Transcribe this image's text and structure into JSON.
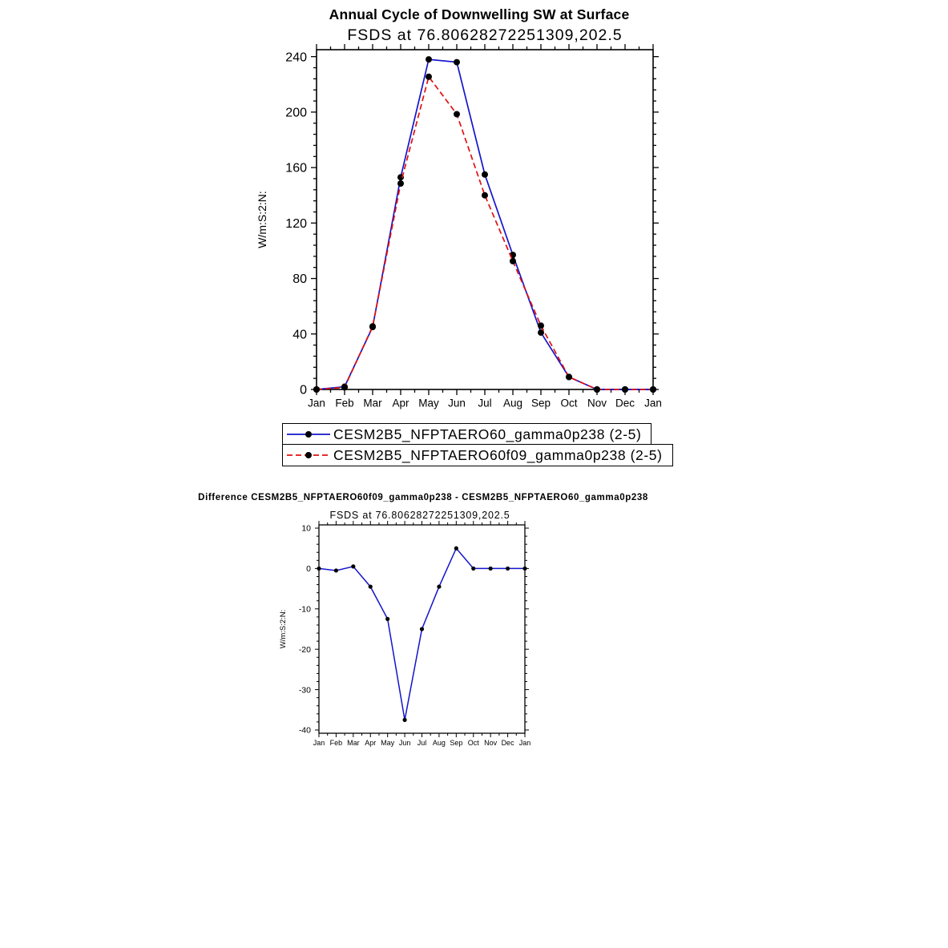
{
  "chart_data": [
    {
      "type": "line",
      "title": "Annual Cycle of Downwelling SW at Surface",
      "subtitle": "FSDS at 76.80628272251309,202.5",
      "ylabel": "W/m:S:2:N:",
      "categories": [
        "Jan",
        "Feb",
        "Mar",
        "Apr",
        "May",
        "Jun",
        "Jul",
        "Aug",
        "Sep",
        "Oct",
        "Nov",
        "Dec",
        "Jan"
      ],
      "ylim": [
        0,
        245
      ],
      "yticks": [
        0,
        40,
        80,
        120,
        160,
        200,
        240
      ],
      "yminor_step": 8,
      "grid": false,
      "legend_position": "below",
      "series": [
        {
          "name": "CESM2B5_NFPTAERO60_gamma0p238 (2-5)",
          "color": "#1414cc",
          "style": "solid",
          "marker_color": "#000000",
          "values": [
            0,
            2,
            45,
            153,
            238,
            236,
            155,
            97,
            41,
            9,
            0,
            0,
            0
          ]
        },
        {
          "name": "CESM2B5_NFPTAERO60f09_gamma0p238 (2-5)",
          "color": "#e01010",
          "style": "dashed",
          "marker_color": "#000000",
          "values": [
            0,
            1.5,
            45.5,
            148.5,
            225.5,
            198.5,
            140,
            92.5,
            46,
            9,
            0,
            0,
            0
          ]
        }
      ]
    },
    {
      "type": "line",
      "title": "Difference CESM2B5_NFPTAERO60f09_gamma0p238 - CESM2B5_NFPTAERO60_gamma0p238",
      "subtitle": "FSDS at 76.80628272251309,202.5",
      "ylabel": "W/m:S:2:N:",
      "categories": [
        "Jan",
        "Feb",
        "Mar",
        "Apr",
        "May",
        "Jun",
        "Jul",
        "Aug",
        "Sep",
        "Oct",
        "Nov",
        "Dec",
        "Jan"
      ],
      "ylim": [
        -40.8,
        10.8
      ],
      "yticks": [
        10,
        0,
        -10,
        -20,
        -30,
        -40
      ],
      "yminor_step": 2,
      "grid": false,
      "legend_position": "none",
      "series": [
        {
          "name": "difference",
          "color": "#1414cc",
          "style": "solid",
          "marker_color": "#000000",
          "values": [
            0,
            -0.5,
            0.5,
            -4.5,
            -12.5,
            -37.5,
            -15,
            -4.5,
            5,
            0,
            0,
            0,
            0
          ]
        }
      ]
    }
  ]
}
